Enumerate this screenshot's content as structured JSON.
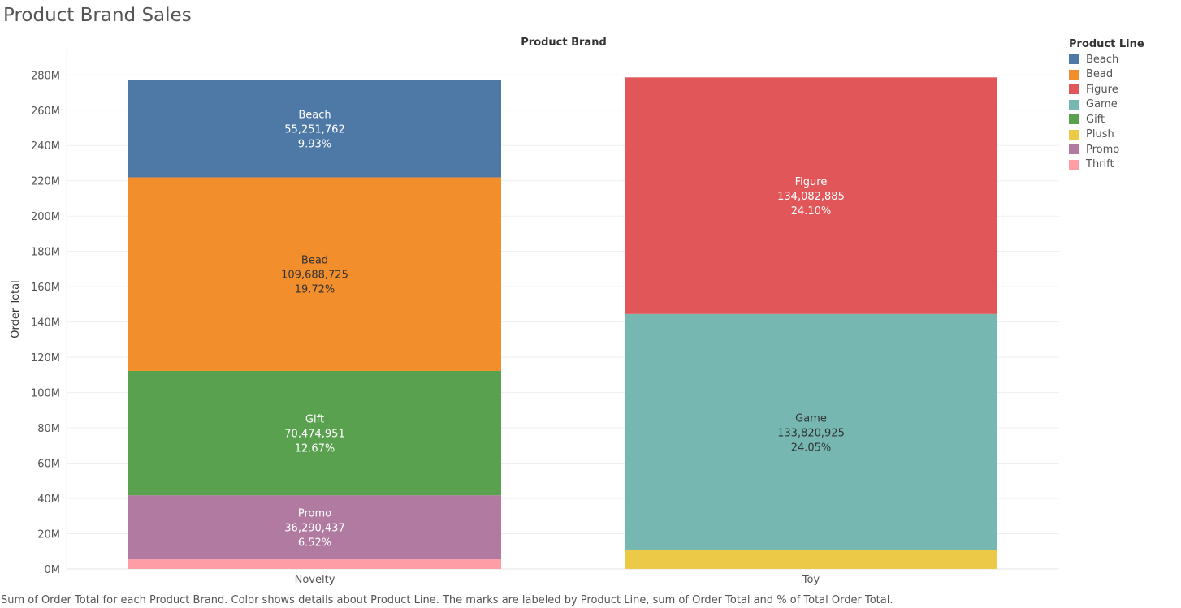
{
  "title": "Product Brand Sales",
  "column_header": "Product Brand",
  "caption": "Sum of Order Total for each Product Brand.  Color shows details about Product Line.  The marks are labeled by Product Line, sum of Order Total and % of Total Order Total.",
  "legend": {
    "title": "Product Line",
    "items": [
      {
        "label": "Beach",
        "color": "#4e79a7"
      },
      {
        "label": "Bead",
        "color": "#f28e2b"
      },
      {
        "label": "Figure",
        "color": "#e15759"
      },
      {
        "label": "Game",
        "color": "#76b7b2"
      },
      {
        "label": "Gift",
        "color": "#59a14f"
      },
      {
        "label": "Plush",
        "color": "#edc948"
      },
      {
        "label": "Promo",
        "color": "#b07aa1"
      },
      {
        "label": "Thrift",
        "color": "#ff9da7"
      }
    ]
  },
  "chart_data": {
    "type": "bar",
    "stacked": true,
    "title": "Product Brand Sales",
    "ylabel": "Order Total",
    "xlabel": "",
    "ylim": [
      0,
      285000000
    ],
    "yticks": [
      0,
      20000000,
      40000000,
      60000000,
      80000000,
      100000000,
      120000000,
      140000000,
      160000000,
      180000000,
      200000000,
      220000000,
      240000000,
      260000000,
      280000000
    ],
    "ytick_labels": [
      "0M",
      "20M",
      "40M",
      "60M",
      "80M",
      "100M",
      "120M",
      "140M",
      "160M",
      "180M",
      "200M",
      "220M",
      "240M",
      "260M",
      "280M"
    ],
    "categories": [
      "Novelty",
      "Toy"
    ],
    "stacks": [
      {
        "category": "Novelty",
        "segments": [
          {
            "name": "Thrift",
            "value": 5500000,
            "label": null,
            "pct": null
          },
          {
            "name": "Promo",
            "value": 36290437,
            "label": "36,290,437",
            "pct": "6.52%"
          },
          {
            "name": "Gift",
            "value": 70474951,
            "label": "70,474,951",
            "pct": "12.67%"
          },
          {
            "name": "Bead",
            "value": 109688725,
            "label": "109,688,725",
            "pct": "19.72%"
          },
          {
            "name": "Beach",
            "value": 55251762,
            "label": "55,251,762",
            "pct": "9.93%"
          }
        ]
      },
      {
        "category": "Toy",
        "segments": [
          {
            "name": "Plush",
            "value": 10700000,
            "label": null,
            "pct": null
          },
          {
            "name": "Game",
            "value": 133820925,
            "label": "133,820,925",
            "pct": "24.05%"
          },
          {
            "name": "Figure",
            "value": 134082885,
            "label": "134,082,885",
            "pct": "24.10%"
          }
        ]
      }
    ],
    "grid": true,
    "legend_position": "right"
  }
}
